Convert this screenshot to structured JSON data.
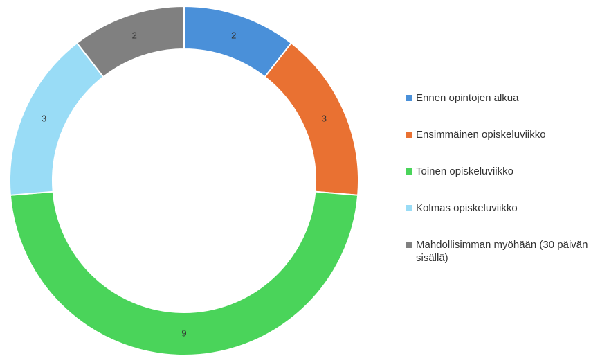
{
  "chart_data": {
    "type": "donut",
    "categories": [
      "Ennen opintojen alkua",
      "Ensimmäinen opiskeluviikko",
      "Toinen opiskeluviikko",
      "Kolmas opiskeluviikko",
      "Mahdollisimman myöhään (30 päivän sisällä)"
    ],
    "values": [
      2,
      3,
      9,
      3,
      2
    ],
    "colors": [
      "#4a90d9",
      "#e97132",
      "#4ad45a",
      "#99dcf6",
      "#808080"
    ],
    "legend": "right"
  }
}
